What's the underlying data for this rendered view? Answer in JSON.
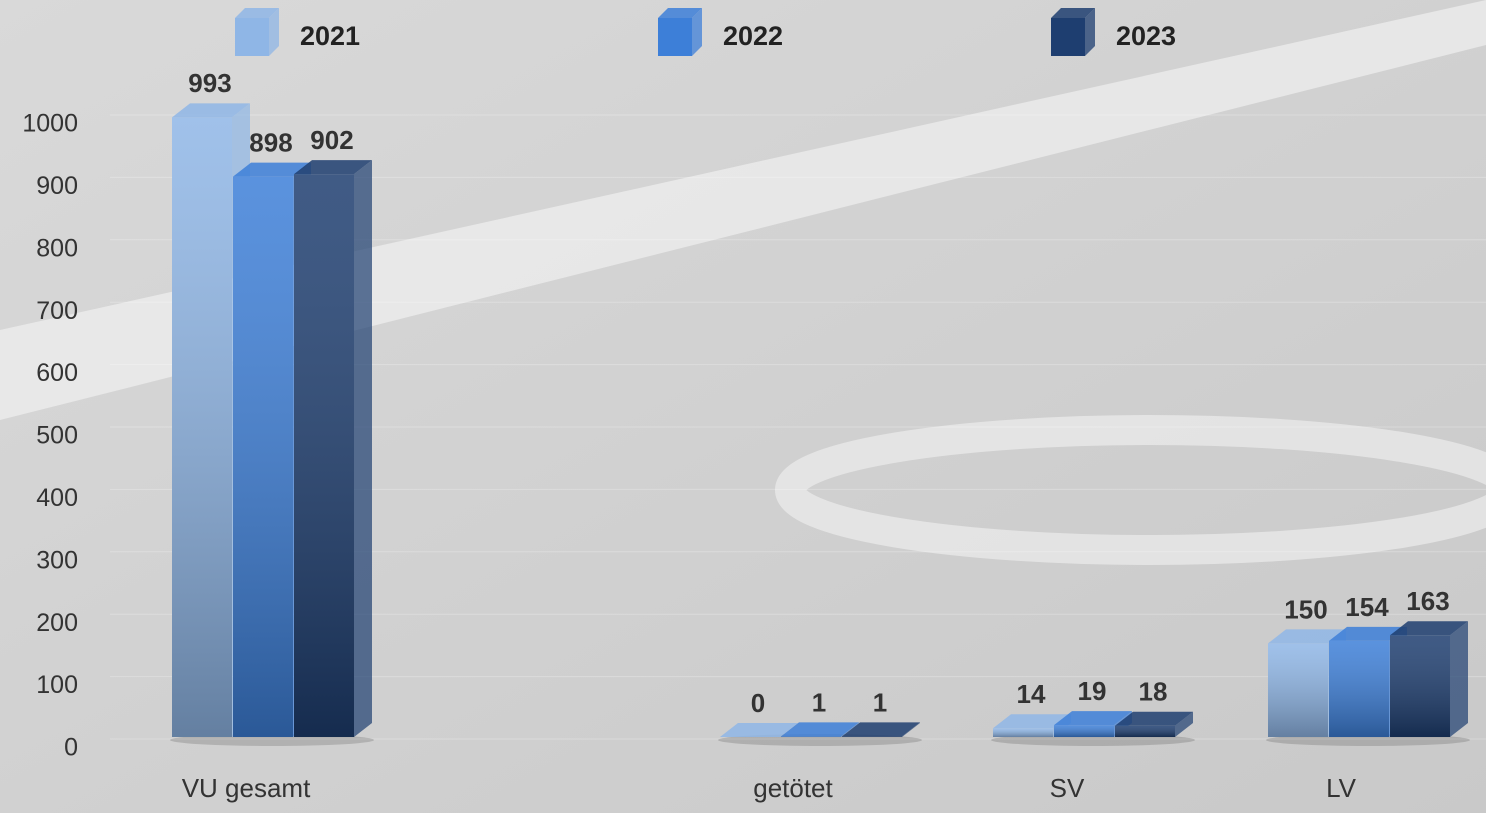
{
  "chart_data": {
    "type": "bar3d",
    "categories": [
      "VU gesamt",
      "getötet",
      "SV",
      "LV"
    ],
    "series": [
      {
        "name": "2021",
        "color": "#8fb6e6",
        "values": [
          993,
          0,
          14,
          150
        ]
      },
      {
        "name": "2022",
        "color": "#3d7fd8",
        "values": [
          898,
          1,
          19,
          154
        ]
      },
      {
        "name": "2023",
        "color": "#1e3e70",
        "values": [
          902,
          1,
          18,
          163
        ]
      }
    ],
    "ylim": [
      0,
      1000
    ],
    "yticks": [
      0,
      100,
      200,
      300,
      400,
      500,
      600,
      700,
      800,
      900,
      1000
    ],
    "grid": true,
    "legend": "top"
  }
}
